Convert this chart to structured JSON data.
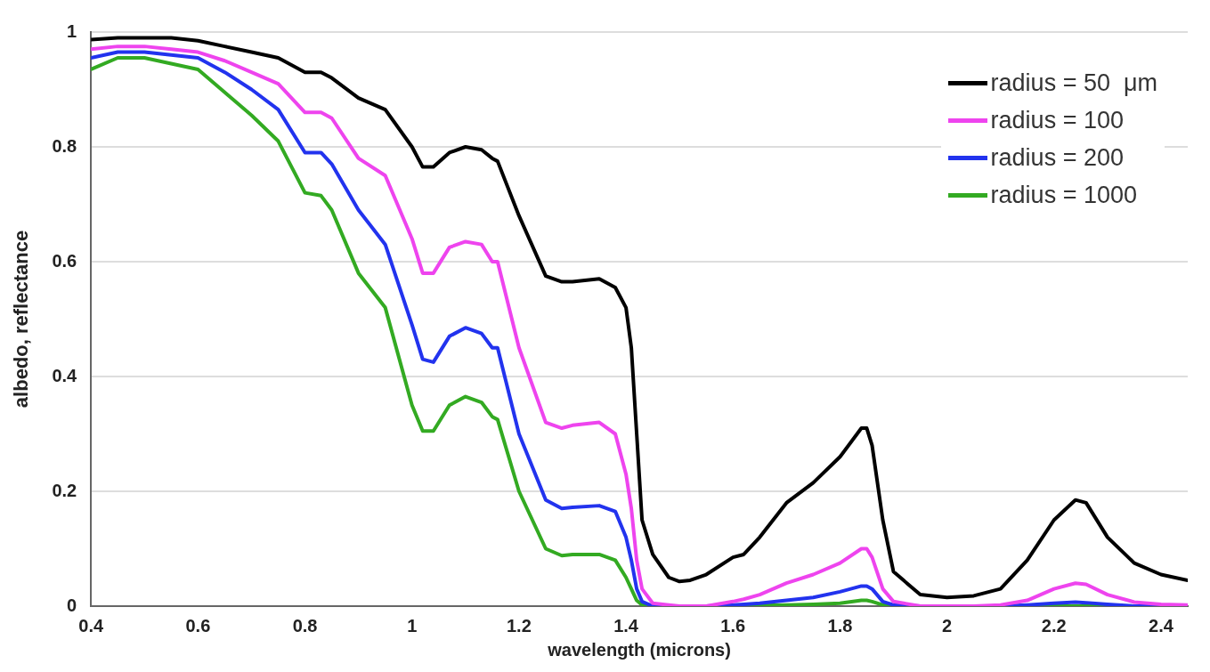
{
  "chart_data": {
    "type": "line",
    "xlabel": "wavelength (microns)",
    "ylabel": "albedo, reflectance",
    "x": [
      0.4,
      0.45,
      0.5,
      0.55,
      0.6,
      0.65,
      0.7,
      0.75,
      0.8,
      0.83,
      0.85,
      0.9,
      0.95,
      1.0,
      1.02,
      1.04,
      1.07,
      1.1,
      1.13,
      1.15,
      1.16,
      1.2,
      1.25,
      1.28,
      1.3,
      1.35,
      1.38,
      1.4,
      1.41,
      1.42,
      1.43,
      1.45,
      1.48,
      1.5,
      1.52,
      1.55,
      1.6,
      1.62,
      1.65,
      1.7,
      1.75,
      1.8,
      1.84,
      1.85,
      1.86,
      1.88,
      1.9,
      1.95,
      2.0,
      2.05,
      2.1,
      2.15,
      2.2,
      2.24,
      2.26,
      2.3,
      2.35,
      2.4,
      2.45
    ],
    "series": [
      {
        "name": "radius = 50  μm",
        "color": "#000000",
        "values": [
          0.987,
          0.99,
          0.99,
          0.99,
          0.985,
          0.975,
          0.965,
          0.955,
          0.93,
          0.93,
          0.92,
          0.885,
          0.865,
          0.8,
          0.765,
          0.765,
          0.79,
          0.8,
          0.795,
          0.78,
          0.775,
          0.68,
          0.575,
          0.565,
          0.565,
          0.57,
          0.555,
          0.52,
          0.45,
          0.3,
          0.15,
          0.09,
          0.05,
          0.043,
          0.045,
          0.055,
          0.085,
          0.09,
          0.12,
          0.18,
          0.215,
          0.26,
          0.31,
          0.31,
          0.28,
          0.15,
          0.06,
          0.02,
          0.015,
          0.018,
          0.03,
          0.08,
          0.15,
          0.185,
          0.18,
          0.12,
          0.075,
          0.055,
          0.045
        ]
      },
      {
        "name": "radius = 100",
        "color": "#ee44ee",
        "values": [
          0.97,
          0.975,
          0.975,
          0.97,
          0.965,
          0.95,
          0.93,
          0.91,
          0.86,
          0.86,
          0.85,
          0.78,
          0.75,
          0.64,
          0.58,
          0.58,
          0.625,
          0.635,
          0.63,
          0.6,
          0.6,
          0.45,
          0.32,
          0.31,
          0.315,
          0.32,
          0.3,
          0.23,
          0.17,
          0.08,
          0.03,
          0.005,
          0.002,
          0,
          0,
          0,
          0.008,
          0.012,
          0.02,
          0.04,
          0.055,
          0.075,
          0.1,
          0.1,
          0.085,
          0.03,
          0.008,
          0,
          0,
          0,
          0.002,
          0.01,
          0.03,
          0.04,
          0.038,
          0.02,
          0.007,
          0.003,
          0.002
        ]
      },
      {
        "name": "radius = 200",
        "color": "#2233ee",
        "values": [
          0.955,
          0.965,
          0.965,
          0.96,
          0.955,
          0.93,
          0.9,
          0.865,
          0.79,
          0.79,
          0.77,
          0.69,
          0.63,
          0.49,
          0.43,
          0.425,
          0.47,
          0.485,
          0.475,
          0.45,
          0.45,
          0.3,
          0.185,
          0.17,
          0.172,
          0.175,
          0.165,
          0.12,
          0.08,
          0.03,
          0.008,
          0,
          0,
          0,
          0,
          0,
          0.002,
          0.003,
          0.005,
          0.01,
          0.015,
          0.025,
          0.035,
          0.035,
          0.03,
          0.008,
          0.002,
          0,
          0,
          0,
          0,
          0.002,
          0.005,
          0.007,
          0.006,
          0.003,
          0,
          0,
          0
        ]
      },
      {
        "name": "radius = 1000",
        "color": "#33aa22",
        "values": [
          0.935,
          0.955,
          0.955,
          0.945,
          0.935,
          0.895,
          0.855,
          0.81,
          0.72,
          0.715,
          0.69,
          0.58,
          0.52,
          0.35,
          0.305,
          0.305,
          0.35,
          0.365,
          0.355,
          0.33,
          0.325,
          0.2,
          0.1,
          0.088,
          0.09,
          0.09,
          0.08,
          0.05,
          0.03,
          0.01,
          0.002,
          0,
          0,
          0,
          0,
          0,
          0,
          0,
          0.001,
          0.002,
          0.003,
          0.005,
          0.01,
          0.01,
          0.008,
          0.002,
          0,
          0,
          0,
          0,
          0,
          0,
          0,
          0,
          0,
          0,
          0,
          null,
          null
        ]
      }
    ],
    "xlim": [
      0.4,
      2.45
    ],
    "xticks": [
      0.4,
      0.6,
      0.8,
      1,
      1.2,
      1.4,
      1.6,
      1.8,
      2,
      2.2,
      2.4
    ],
    "ylim": [
      0,
      1
    ],
    "yticks": [
      0,
      0.2,
      0.4,
      0.6,
      0.8,
      1
    ],
    "grid": "y",
    "legend": "top right",
    "marker": "none",
    "line_style": "solid"
  }
}
